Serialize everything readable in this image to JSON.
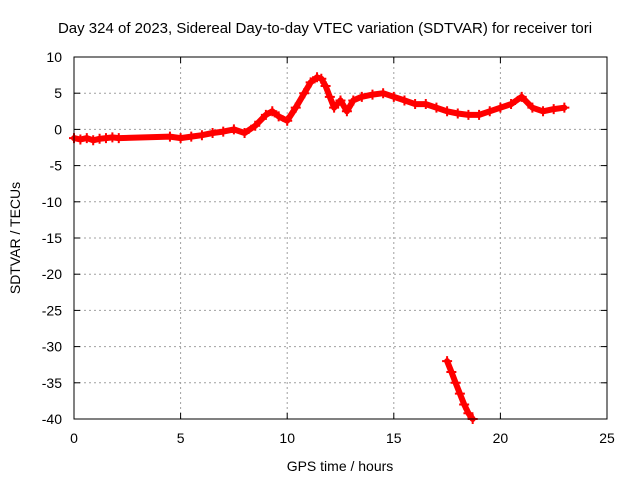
{
  "chart_data": {
    "type": "scatter",
    "title": "Day 324 of 2023, Sidereal Day-to-day VTEC variation (SDTVAR) for receiver tori",
    "xlabel": "GPS time / hours",
    "ylabel": "SDTVAR / TECUs",
    "xlim": [
      0,
      25
    ],
    "ylim": [
      -40,
      10
    ],
    "x_ticks": [
      "0",
      "5",
      "10",
      "15",
      "20",
      "25"
    ],
    "y_ticks": [
      "10",
      "5",
      "0",
      "-5",
      "-10",
      "-15",
      "-20",
      "-25",
      "-30",
      "-35",
      "-40"
    ],
    "grid": true,
    "legend": "none",
    "series": [
      {
        "color": "#ff0000",
        "marker": "plus",
        "x": [
          0.0,
          0.3,
          0.6,
          0.9,
          1.2,
          1.5,
          1.8,
          2.1,
          4.5,
          5.0,
          5.5,
          6.0,
          6.5,
          7.0,
          7.5,
          8.0,
          8.5,
          9.0,
          9.3,
          9.6,
          10.0,
          10.4,
          10.8,
          11.1,
          11.4,
          11.6,
          11.8,
          12.0,
          12.2,
          12.5,
          12.8,
          13.1,
          13.5,
          14.0,
          14.5,
          15.0,
          15.5,
          16.0,
          16.5,
          17.0,
          17.5,
          18.0,
          18.5,
          19.0,
          19.5,
          20.0,
          20.5,
          21.0,
          21.5,
          22.0,
          22.5,
          23.0
        ],
        "y": [
          -1.2,
          -1.4,
          -1.2,
          -1.5,
          -1.3,
          -1.2,
          -1.1,
          -1.2,
          -1.0,
          -1.2,
          -1.0,
          -0.8,
          -0.5,
          -0.3,
          0.0,
          -0.5,
          0.5,
          2.0,
          2.5,
          1.8,
          1.2,
          3.0,
          5.0,
          6.5,
          7.2,
          7.0,
          6.0,
          4.5,
          3.0,
          4.0,
          2.5,
          4.0,
          4.5,
          4.8,
          5.0,
          4.5,
          4.0,
          3.5,
          3.5,
          3.0,
          2.5,
          2.2,
          2.0,
          2.0,
          2.5,
          3.0,
          3.5,
          4.5,
          3.0,
          2.5,
          2.8,
          3.0
        ]
      },
      {
        "color": "#ff0000",
        "marker": "plus",
        "x": [
          17.5,
          17.7,
          17.9,
          18.1,
          18.3,
          18.5,
          18.7
        ],
        "y": [
          -32.0,
          -33.5,
          -35.0,
          -36.5,
          -38.0,
          -39.2,
          -40.0
        ]
      }
    ]
  }
}
